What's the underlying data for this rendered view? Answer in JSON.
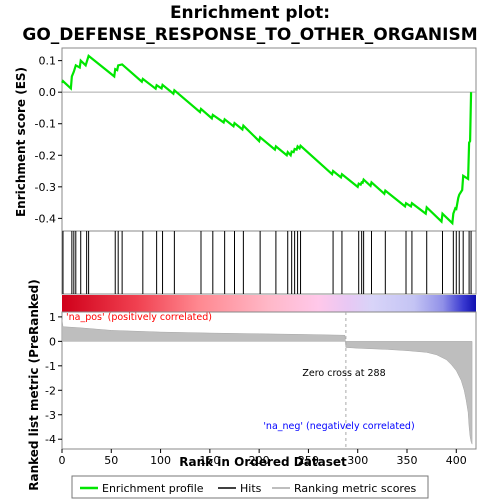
{
  "chart_data": {
    "type": "line",
    "title_line1": "Enrichment plot:",
    "title_line2": "GO_DEFENSE_RESPONSE_TO_OTHER_ORGANISM",
    "es_ylabel": "Enrichment score (ES)",
    "metric_ylabel": "Ranked list metric (PreRanked)",
    "xlabel": "Rank in Ordered Dataset",
    "xlim": [
      0,
      420
    ],
    "x_ticks": [
      0,
      50,
      100,
      150,
      200,
      250,
      300,
      350,
      400
    ],
    "es_ylim": [
      -0.44,
      0.14
    ],
    "es_ticks": [
      0.1,
      0.0,
      -0.1,
      -0.2,
      -0.3,
      -0.4
    ],
    "metric_ylim": [
      -4.4,
      1.2
    ],
    "metric_ticks": [
      1,
      0,
      -1,
      -2,
      -3,
      -4
    ],
    "colors": {
      "enrichment": "#00e600",
      "hits": "#000000",
      "metric": "#bebebe",
      "pos_text": "#ff0000",
      "neg_text": "#0000ff",
      "zero_line": "#aaaaaa"
    },
    "annotations": {
      "pos": "'na_pos' (positively correlated)",
      "neg": "'na_neg' (negatively correlated)",
      "zero_cross": "Zero cross at 288"
    },
    "zero_cross": 288,
    "n_genes": 416,
    "hits": [
      1,
      10,
      12,
      14,
      19,
      25,
      27,
      54,
      57,
      61,
      82,
      96,
      102,
      114,
      141,
      153,
      165,
      175,
      184,
      201,
      217,
      229,
      233,
      236,
      239,
      242,
      275,
      284,
      301,
      304,
      306,
      314,
      328,
      349,
      355,
      370,
      386,
      397,
      400,
      403,
      407,
      413,
      415
    ],
    "enrichment_profile": {
      "x": [
        0,
        1,
        9,
        10,
        12,
        14,
        18,
        19,
        24,
        25,
        27,
        53,
        54,
        56,
        57,
        61,
        81,
        82,
        95,
        96,
        101,
        102,
        113,
        114,
        140,
        141,
        152,
        153,
        164,
        165,
        174,
        175,
        183,
        184,
        200,
        201,
        216,
        217,
        228,
        229,
        232,
        233,
        235,
        236,
        238,
        239,
        241,
        242,
        274,
        275,
        283,
        284,
        300,
        301,
        303,
        304,
        305,
        306,
        313,
        314,
        327,
        328,
        348,
        349,
        354,
        355,
        369,
        370,
        385,
        386,
        396,
        397,
        399,
        400,
        402,
        403,
        406,
        407,
        412,
        413,
        414,
        415
      ],
      "y": [
        0.03,
        0.035,
        0.012,
        0.05,
        0.065,
        0.085,
        0.078,
        0.1,
        0.085,
        0.095,
        0.115,
        0.05,
        0.073,
        0.07,
        0.085,
        0.088,
        0.033,
        0.042,
        0.011,
        0.022,
        0.012,
        0.023,
        -0.005,
        0.006,
        -0.063,
        -0.053,
        -0.083,
        -0.072,
        -0.096,
        -0.086,
        -0.108,
        -0.098,
        -0.118,
        -0.106,
        -0.155,
        -0.143,
        -0.182,
        -0.172,
        -0.2,
        -0.19,
        -0.2,
        -0.188,
        -0.19,
        -0.18,
        -0.182,
        -0.172,
        -0.178,
        -0.17,
        -0.26,
        -0.25,
        -0.27,
        -0.26,
        -0.3,
        -0.29,
        -0.293,
        -0.286,
        -0.287,
        -0.277,
        -0.297,
        -0.286,
        -0.322,
        -0.312,
        -0.362,
        -0.352,
        -0.362,
        -0.352,
        -0.385,
        -0.365,
        -0.41,
        -0.385,
        -0.415,
        -0.385,
        -0.368,
        -0.37,
        -0.335,
        -0.325,
        -0.31,
        -0.265,
        -0.275,
        -0.16,
        -0.155,
        0.0
      ]
    },
    "metric_profile": {
      "x": [
        0,
        1,
        20,
        50,
        100,
        150,
        200,
        250,
        287,
        288,
        300,
        330,
        350,
        370,
        380,
        390,
        395,
        400,
        405,
        408,
        410,
        412,
        413,
        414,
        415,
        416
      ],
      "y": [
        0.9,
        0.6,
        0.55,
        0.45,
        0.38,
        0.34,
        0.31,
        0.28,
        0.25,
        -0.25,
        -0.28,
        -0.33,
        -0.38,
        -0.45,
        -0.55,
        -0.75,
        -0.95,
        -1.2,
        -1.6,
        -2.0,
        -2.4,
        -2.9,
        -3.5,
        -3.9,
        -4.1,
        -4.2
      ]
    },
    "legend": [
      {
        "label": "Enrichment profile",
        "kind": "green-line"
      },
      {
        "label": "Hits",
        "kind": "black-line"
      },
      {
        "label": "Ranking metric scores",
        "kind": "gray-line"
      }
    ]
  }
}
